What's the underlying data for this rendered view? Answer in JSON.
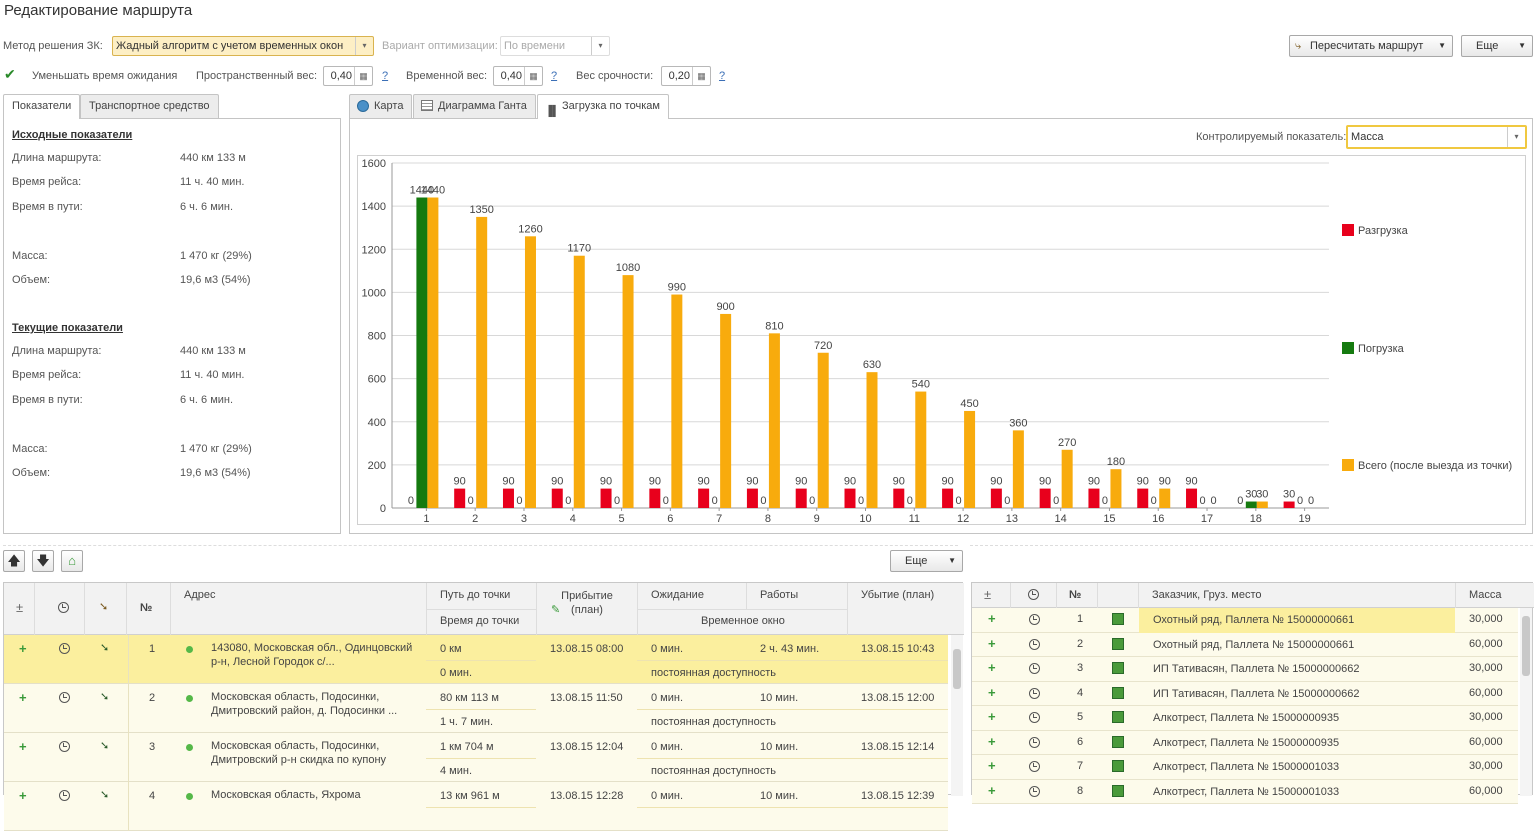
{
  "window_title": "Редактирование маршрута",
  "toolbar": {
    "method_label": "Метод решения ЗК:",
    "method_value": "Жадный алгоритм с учетом временных окон",
    "opt_label": "Вариант оптимизации:",
    "opt_value": "По времени",
    "recalc_button": "Пересчитать маршрут",
    "more_button": "Еще",
    "reduce_wait_label": "Уменьшать время ожидания",
    "reduce_wait_checked": true,
    "spatial_label": "Пространственный вес:",
    "spatial_value": "0,40",
    "time_label": "Временной вес:",
    "time_value": "0,40",
    "urgency_label": "Вес срочности:",
    "urgency_value": "0,20",
    "help": "?"
  },
  "left_tabs": [
    "Показатели",
    "Транспортное средство"
  ],
  "indicators": {
    "initial_title": "Исходные показатели",
    "current_title": "Текущие показатели",
    "rows": [
      {
        "label": "Длина маршрута:",
        "value": "440 км 133 м"
      },
      {
        "label": "Время рейса:",
        "value": "11 ч. 40 мин."
      },
      {
        "label": "Время в пути:",
        "value": "6 ч. 6 мин."
      },
      {
        "label": "Масса:",
        "value": "1 470 кг (29%)"
      },
      {
        "label": "Объем:",
        "value": "19,6 м3 (54%)"
      }
    ]
  },
  "right_tabs": [
    "Карта",
    "Диаграмма Ганта",
    "Загрузка по точкам"
  ],
  "control": {
    "label": "Контролируемый показатель:",
    "value": "Масса"
  },
  "colors": {
    "unload": "#e8001c",
    "load": "#157a0f",
    "total": "#f8ab0d",
    "accent": "#f5c842"
  },
  "chart_data": {
    "type": "bar",
    "categories": [
      "1",
      "2",
      "3",
      "4",
      "5",
      "6",
      "7",
      "8",
      "9",
      "10",
      "11",
      "12",
      "13",
      "14",
      "15",
      "16",
      "17",
      "18",
      "19"
    ],
    "series": [
      {
        "name": "Разгрузка",
        "values": [
          0,
          90,
          90,
          90,
          90,
          90,
          90,
          90,
          90,
          90,
          90,
          90,
          90,
          90,
          90,
          90,
          90,
          0,
          30
        ]
      },
      {
        "name": "Погрузка",
        "values": [
          1440,
          0,
          0,
          0,
          0,
          0,
          0,
          0,
          0,
          0,
          0,
          0,
          0,
          0,
          0,
          0,
          0,
          30,
          0
        ]
      },
      {
        "name": "Всего (после выезда из точки)",
        "values": [
          1440,
          1350,
          1260,
          1170,
          1080,
          990,
          900,
          810,
          720,
          630,
          540,
          450,
          360,
          270,
          180,
          90,
          0,
          30,
          0
        ]
      }
    ],
    "yticks": [
      "0",
      "200",
      "400",
      "600",
      "800",
      "1000",
      "1200",
      "1400",
      "1600"
    ],
    "ylim": [
      0,
      1600
    ],
    "legend": "right",
    "grid": true
  },
  "mid_toolbar": {
    "more_button": "Еще"
  },
  "route_table": {
    "headers": {
      "n": "№",
      "address": "Адрес",
      "path": "Путь до точки",
      "path_time": "Время до точки",
      "arrival": "Прибытие (план)",
      "wait": "Ожидание",
      "works": "Работы",
      "window": "Временное окно",
      "depart": "Убытие (план)"
    },
    "rows": [
      {
        "n": "1",
        "address": "143080, Московская обл., Одинцовский р-н, Лесной Городок с/...",
        "path": "0 км",
        "path_time": "0 мин.",
        "arrival": "13.08.15 08:00",
        "wait": "0 мин.",
        "works": "2 ч. 43 мин.",
        "window": "постоянная доступность",
        "depart": "13.08.15 10:43"
      },
      {
        "n": "2",
        "address": "Московская область, Подосинки, Дмитровский район, д. Подосинки ...",
        "path": "80 км 113 м",
        "path_time": "1 ч. 7 мин.",
        "arrival": "13.08.15 11:50",
        "wait": "0 мин.",
        "works": "10 мин.",
        "window": "постоянная доступность",
        "depart": "13.08.15 12:00"
      },
      {
        "n": "3",
        "address": "Московская область, Подосинки, Дмитровский р-н скидка по купону",
        "path": "1 км 704 м",
        "path_time": "4 мин.",
        "arrival": "13.08.15 12:04",
        "wait": "0 мин.",
        "works": "10 мин.",
        "window": "постоянная доступность",
        "depart": "13.08.15 12:14"
      },
      {
        "n": "4",
        "address": "Московская область, Яхрома",
        "path": "13 км 961 м",
        "path_time": "",
        "arrival": "13.08.15 12:28",
        "wait": "0 мин.",
        "works": "10 мин.",
        "window": "",
        "depart": "13.08.15 12:39"
      }
    ]
  },
  "cargo_table": {
    "headers": {
      "n": "№",
      "customer": "Заказчик, Груз. место",
      "mass": "Масса"
    },
    "rows": [
      {
        "n": "1",
        "customer": "Охотный ряд, Паллета № 15000000661",
        "mass": "30,000"
      },
      {
        "n": "2",
        "customer": "Охотный ряд, Паллета № 15000000661",
        "mass": "60,000"
      },
      {
        "n": "3",
        "customer": "ИП Тативасян, Паллета № 15000000662",
        "mass": "30,000"
      },
      {
        "n": "4",
        "customer": "ИП Тативасян, Паллета № 15000000662",
        "mass": "60,000"
      },
      {
        "n": "5",
        "customer": "Алкотрест, Паллета № 15000000935",
        "mass": "30,000"
      },
      {
        "n": "6",
        "customer": "Алкотрест, Паллета № 15000000935",
        "mass": "60,000"
      },
      {
        "n": "7",
        "customer": "Алкотрест, Паллета № 15000001033",
        "mass": "30,000"
      },
      {
        "n": "8",
        "customer": "Алкотрест, Паллета № 15000001033",
        "mass": "60,000"
      }
    ]
  }
}
